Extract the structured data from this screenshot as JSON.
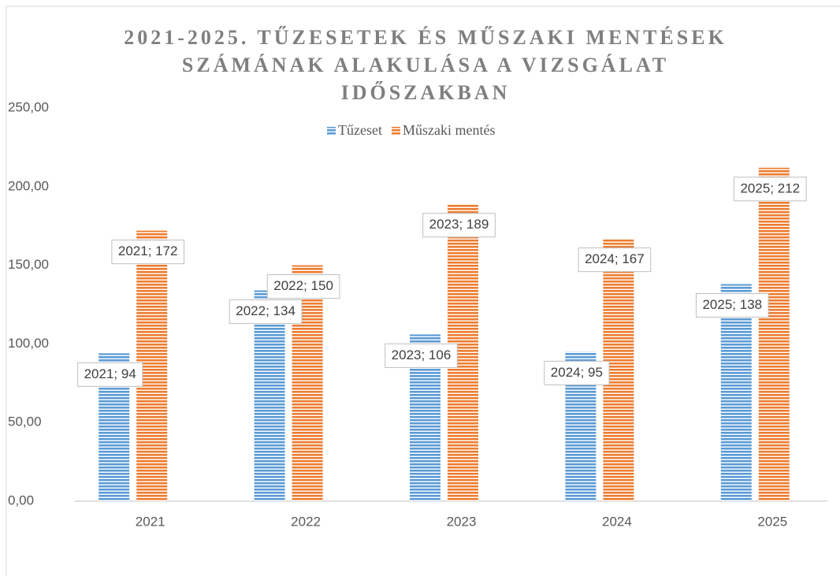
{
  "chart_data": {
    "type": "bar",
    "title": [
      "2021-2025. TŰZESETEK ÉS MŰSZAKI MENTÉSEK",
      "SZÁMÁNAK ALAKULÁSA A VIZSGÁLAT",
      "IDŐSZAKBAN"
    ],
    "categories": [
      "2021",
      "2022",
      "2023",
      "2024",
      "2025"
    ],
    "series": [
      {
        "name": "Tűzeset",
        "color": "#5b9bd5",
        "values": [
          94,
          134,
          106,
          95,
          138
        ],
        "value_labels": [
          "2021; 94",
          "2022; 134",
          "2023; 106",
          "2024; 95",
          "2025; 138"
        ]
      },
      {
        "name": "Műszaki mentés",
        "color": "#ed7d31",
        "values": [
          172,
          150,
          189,
          167,
          212
        ],
        "value_labels": [
          "2021; 172",
          "2022; 150",
          "2023; 189",
          "2024; 167",
          "2025; 212"
        ]
      }
    ],
    "ylim": [
      0,
      250
    ],
    "yticks": [
      {
        "value": 0,
        "label": "0,00"
      },
      {
        "value": 50,
        "label": "50,00"
      },
      {
        "value": 100,
        "label": "100,00"
      },
      {
        "value": 150,
        "label": "150,00"
      },
      {
        "value": 200,
        "label": "200,00"
      },
      {
        "value": 250,
        "label": "250,00"
      }
    ],
    "legend": "top"
  }
}
